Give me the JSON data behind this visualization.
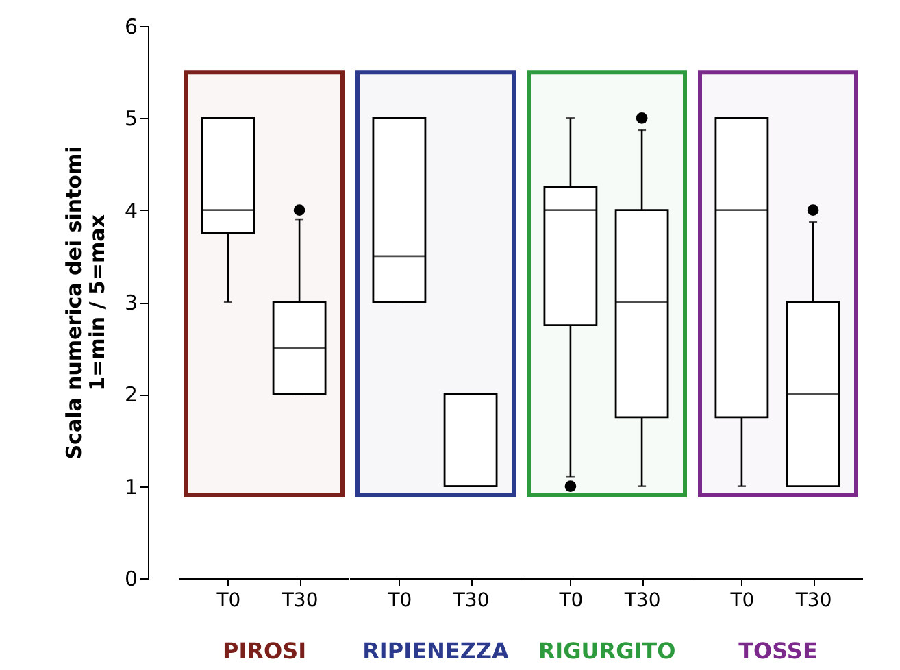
{
  "chart_data": [
    {
      "type": "box",
      "xlabel": "PIROSI",
      "ylabel": "Scala numerica dei sintomi\n1=min / 5=max",
      "categories": [
        "T0",
        "T30"
      ],
      "ylim": [
        0,
        6
      ],
      "yticks": [
        0,
        1,
        2,
        3,
        4,
        5,
        6
      ],
      "boxes": [
        {
          "low": 3,
          "q1": 3.75,
          "median": 4,
          "q3": 5,
          "high": 5
        },
        {
          "low": 2,
          "q1": 2,
          "median": 2.5,
          "q3": 3,
          "high": 3.9,
          "outliers": [
            4
          ]
        }
      ],
      "bands": [
        {
          "axis": "y",
          "from": 0.9,
          "to": 5.5,
          "color": "#7a1f1a"
        }
      ]
    },
    {
      "type": "box",
      "xlabel": "RIPIENEZZA",
      "categories": [
        "T0",
        "T30"
      ],
      "ylim": [
        0,
        6
      ],
      "tick_labels": "x",
      "boxes": [
        {
          "low": 3,
          "q1": 3,
          "median": 3.5,
          "q3": 5,
          "high": 5
        },
        {
          "low": 1,
          "q1": 1,
          "median": 1,
          "q3": 2,
          "high": 2
        }
      ],
      "bands": [
        {
          "axis": "y",
          "from": 0.9,
          "to": 5.5,
          "color": "#2b3a8c"
        }
      ]
    },
    {
      "type": "box",
      "xlabel": "RIGURGITO",
      "categories": [
        "T0",
        "T30"
      ],
      "ylim": [
        0,
        6
      ],
      "tick_labels": "x",
      "boxes": [
        {
          "low": 1.1,
          "q1": 2.75,
          "median": 4,
          "q3": 4.25,
          "high": 5,
          "outliers": [
            1
          ]
        },
        {
          "low": 1,
          "q1": 1.75,
          "median": 3,
          "q3": 4,
          "high": 4.87,
          "outliers": [
            5
          ]
        }
      ],
      "bands": [
        {
          "axis": "y",
          "from": 0.9,
          "to": 5.5,
          "color": "#2e9a3e"
        }
      ]
    },
    {
      "type": "box",
      "xlabel": "TOSSE",
      "categories": [
        "T0",
        "T30"
      ],
      "ylim": [
        0,
        6
      ],
      "tick_labels": "x",
      "boxes": [
        {
          "low": 1,
          "q1": 1.75,
          "median": 4,
          "q3": 5,
          "high": 5
        },
        {
          "low": 1,
          "q1": 1,
          "median": 2,
          "q3": 3,
          "high": 3.87,
          "outliers": [
            4
          ]
        }
      ],
      "bands": [
        {
          "axis": "y",
          "from": 0.9,
          "to": 5.5,
          "color": "#7b2a8c"
        }
      ]
    }
  ]
}
